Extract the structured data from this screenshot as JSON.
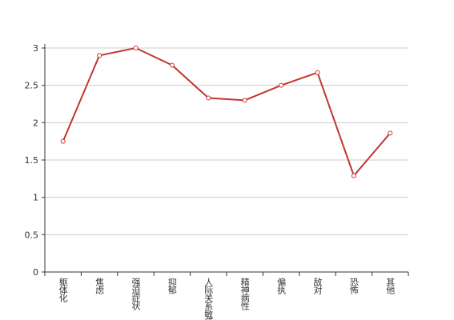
{
  "chart_data": {
    "type": "line",
    "categories": [
      "躯体化",
      "焦虑",
      "强迫症状",
      "抑郁",
      "人际关系敏感",
      "精神病性",
      "偏执",
      "敌对",
      "恐怖",
      "其他"
    ],
    "values": [
      1.75,
      2.9,
      3.0,
      2.77,
      2.33,
      2.3,
      2.5,
      2.67,
      1.29,
      1.86
    ],
    "color": "#c23531",
    "ylim": [
      0,
      3
    ],
    "yticks": [
      0,
      0.5,
      1,
      1.5,
      2,
      2.5,
      3
    ],
    "grid": true
  }
}
